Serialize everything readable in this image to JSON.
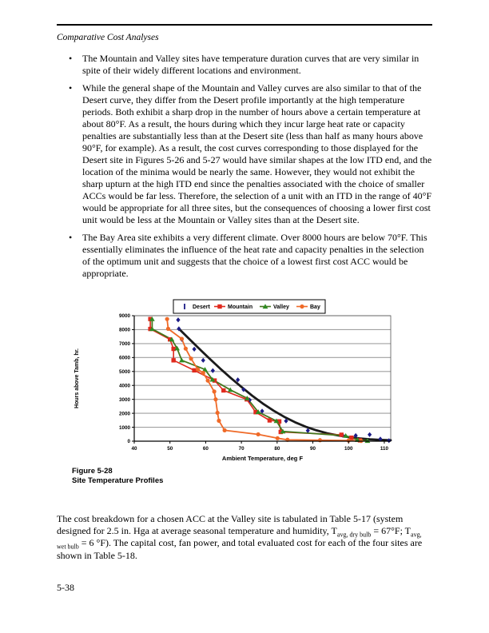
{
  "page": {
    "header": "Comparative Cost Analyses",
    "page_number": "5-38"
  },
  "bullets": [
    {
      "text": "The Mountain and Valley sites have temperature duration curves that are very similar in spite of their widely different locations and environment."
    },
    {
      "text": "While the general shape of the Mountain and Valley curves are also similar to that of the Desert curve, they differ from the Desert profile importantly at the high temperature periods. Both exhibit a sharp drop in the number of hours above a certain temperature at about 80°F. As a result, the hours during which they incur large heat rate or capacity penalties are substantially less than at the Desert site (less than half as many hours above 90°F, for example). As a result, the cost curves corresponding to those displayed for the Desert site in Figures 5-26 and 5-27 would have similar shapes at the low ITD end, and the location of the minima would be nearly the same. However, they would not exhibit the sharp upturn at the high ITD end since the penalties associated with the choice of smaller ACCs would be far less. Therefore, the selection of a unit with an ITD in the range of 40°F would be appropriate for all three sites, but the consequences of choosing a lower first cost unit would be less at the Mountain or Valley sites than at the Desert site."
    },
    {
      "text": "The Bay Area site exhibits a very different climate. Over 8000 hours are below 70°F. This essentially eliminates the influence of the heat rate and capacity penalties in the selection of the optimum unit and suggests that the choice of a lowest first cost ACC would be appropriate."
    }
  ],
  "figure_caption": {
    "line1": "Figure 5-28",
    "line2": "Site Temperature Profiles"
  },
  "closing_paragraph": {
    "segments": [
      {
        "t": "The cost breakdown for a chosen ACC at the Valley site is tabulated in Table 5-17 (system designed for 2.5 in. Hga at average seasonal temperature and humidity, T"
      },
      {
        "t": "avg, dry bulb",
        "sub": true
      },
      {
        "t": " = 67°F;  T"
      },
      {
        "t": "avg, wet bulb",
        "sub": true
      },
      {
        "t": " = 6 °F). The capital cost, fan power, and total evaluated cost for each of the four sites are shown in Table 5-18."
      }
    ]
  },
  "chart_data": {
    "type": "scatter",
    "title": "",
    "xlabel": "Ambient Temperature, deg F",
    "ylabel": "Hours above Tamb, hr.",
    "xlim": [
      40,
      111.8
    ],
    "ylim": [
      0,
      9000
    ],
    "xticks": [
      40,
      50,
      60,
      70,
      80,
      90,
      100,
      110
    ],
    "yticks": [
      0,
      1000,
      2000,
      3000,
      4000,
      5000,
      6000,
      7000,
      8000,
      9000
    ],
    "grid": "horizontal-gray",
    "legend_position": "top-center",
    "colors": {
      "desert": "#1c1c86",
      "desert_trend": "#1a1a1a",
      "mountain": "#e02a1e",
      "valley_line": "#44761c",
      "valley_marker": "#2e8b22",
      "bay": "#ef6a28",
      "gridline": "#a0a0a0",
      "axis": "#000000",
      "border": "#555555"
    },
    "series": [
      {
        "name": "Desert",
        "marker": "diamond",
        "legend_glyph": "vline",
        "color": "#1c1c86",
        "line": "none",
        "points": [
          [
            52.3,
            8700
          ],
          [
            52.5,
            8060
          ],
          [
            53.3,
            7300
          ],
          [
            56.8,
            6600
          ],
          [
            59.3,
            5800
          ],
          [
            62,
            5060
          ],
          [
            69,
            4400
          ],
          [
            70.6,
            3700
          ],
          [
            72.3,
            2950
          ],
          [
            75.8,
            2160
          ],
          [
            82.5,
            1450
          ],
          [
            88.6,
            760
          ],
          [
            98.3,
            430
          ],
          [
            102,
            400
          ],
          [
            105.9,
            470
          ],
          [
            108.9,
            150
          ],
          [
            111.3,
            40
          ]
        ]
      },
      {
        "name": "Desert trend",
        "marker": "none",
        "show_in_legend": false,
        "color": "#1a1a1a",
        "line_width": 2.8,
        "points": [
          [
            52.5,
            8060
          ],
          [
            55,
            7430
          ],
          [
            58,
            6680
          ],
          [
            61,
            5940
          ],
          [
            64,
            5220
          ],
          [
            67,
            4540
          ],
          [
            70,
            3890
          ],
          [
            73,
            3270
          ],
          [
            76,
            2700
          ],
          [
            79,
            2190
          ],
          [
            82,
            1740
          ],
          [
            85,
            1360
          ],
          [
            88,
            1040
          ],
          [
            91,
            780
          ],
          [
            94,
            570
          ],
          [
            97,
            410
          ],
          [
            100,
            290
          ],
          [
            103,
            200
          ],
          [
            106,
            130
          ],
          [
            109,
            90
          ],
          [
            111.8,
            70
          ]
        ]
      },
      {
        "name": "Mountain",
        "marker": "square",
        "legend_glyph": "line-marker",
        "color": "#e02a1e",
        "line_width": 1.6,
        "points": [
          [
            44.5,
            8760
          ],
          [
            44.5,
            8050
          ],
          [
            50,
            7300
          ],
          [
            51,
            6620
          ],
          [
            51,
            5800
          ],
          [
            56.8,
            5080
          ],
          [
            62.5,
            4350
          ],
          [
            65,
            3640
          ],
          [
            71.5,
            3000
          ],
          [
            74,
            2080
          ],
          [
            77.9,
            1490
          ],
          [
            80.6,
            1420
          ],
          [
            81,
            660
          ],
          [
            98,
            460
          ],
          [
            100.8,
            250
          ],
          [
            103.2,
            60
          ]
        ]
      },
      {
        "name": "Valley",
        "marker": "triangle",
        "legend_glyph": "line-marker",
        "color": "#2e8b22",
        "line_color": "#44761c",
        "line_width": 1.8,
        "points": [
          [
            45,
            8760
          ],
          [
            45,
            8050
          ],
          [
            50.5,
            7300
          ],
          [
            52,
            6660
          ],
          [
            53.3,
            5800
          ],
          [
            59.8,
            5140
          ],
          [
            61.9,
            4420
          ],
          [
            66.9,
            3680
          ],
          [
            71.6,
            3080
          ],
          [
            74.7,
            2100
          ],
          [
            79.8,
            1450
          ],
          [
            81.6,
            700
          ],
          [
            99.2,
            390
          ],
          [
            102.5,
            100
          ],
          [
            105.3,
            30
          ]
        ]
      },
      {
        "name": "Bay",
        "marker": "circle",
        "legend_glyph": "line-marker",
        "color": "#ef6a28",
        "line_width": 1.8,
        "points": [
          [
            49.2,
            8760
          ],
          [
            49.5,
            8060
          ],
          [
            53.3,
            7340
          ],
          [
            54.4,
            6640
          ],
          [
            55.9,
            5920
          ],
          [
            57.8,
            5150
          ],
          [
            59.3,
            4900
          ],
          [
            60.6,
            4350
          ],
          [
            62.4,
            3560
          ],
          [
            62.8,
            3000
          ],
          [
            63.3,
            2040
          ],
          [
            63.7,
            1470
          ],
          [
            65.3,
            780
          ],
          [
            74.7,
            490
          ],
          [
            80.1,
            210
          ],
          [
            82.9,
            100
          ],
          [
            92,
            70
          ],
          [
            100,
            50
          ],
          [
            103.5,
            20
          ]
        ]
      }
    ]
  }
}
